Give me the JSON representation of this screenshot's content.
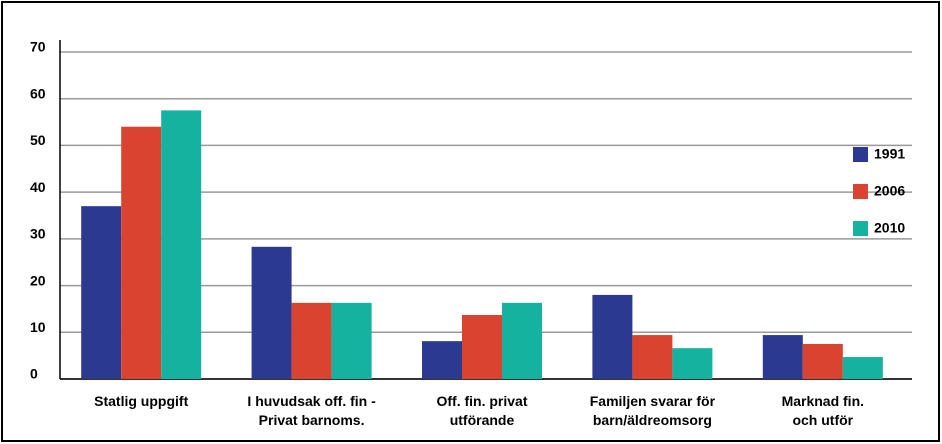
{
  "chart_data": {
    "type": "bar",
    "categories": [
      "Statlig uppgift",
      "I huvudsak off. fin -\nPrivat barnoms.",
      "Off. fin. privat\nutförande",
      "Familjen svarar för\nbarn/äldreomsorg",
      "Marknad fin.\noch utför"
    ],
    "series": [
      {
        "name": "1991",
        "color": "#2b3990",
        "values": [
          37,
          28.3,
          8.1,
          18,
          9.4
        ]
      },
      {
        "name": "2006",
        "color": "#d9432f",
        "values": [
          54,
          16.3,
          13.7,
          9.4,
          7.5
        ]
      },
      {
        "name": "2010",
        "color": "#14b29f",
        "values": [
          57.5,
          16.3,
          16.3,
          6.6,
          4.7
        ]
      }
    ],
    "ylim": [
      0,
      70
    ],
    "yticks": [
      0,
      10,
      20,
      30,
      40,
      50,
      60,
      70
    ],
    "grid": true,
    "legend": "right"
  }
}
